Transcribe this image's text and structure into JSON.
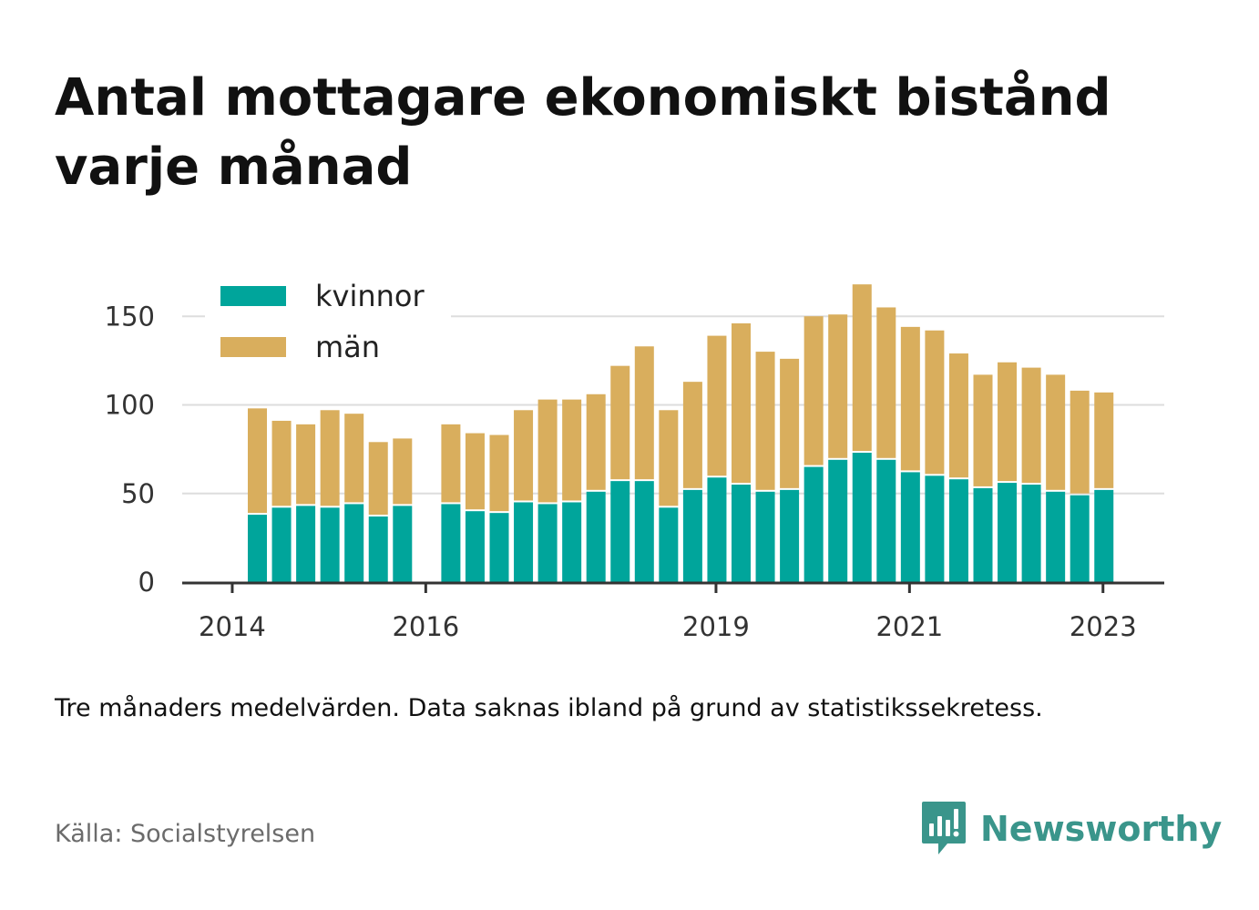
{
  "header": {
    "title": "Antal mottagare ekonomiskt bistånd varje månad"
  },
  "caption": "Tre månaders medelvärden. Data saknas ibland på grund av statistikssekretess.",
  "source": "Källa: Socialstyrelsen",
  "brand": {
    "name": "Newsworthy",
    "icon": "newsworthy-logo-icon",
    "color": "#3a958b"
  },
  "colors": {
    "kvinnor": "#00a59b",
    "man": "#d9ae5d",
    "grid": "#dddddd",
    "axis": "#333333"
  },
  "chart_data": {
    "type": "bar",
    "stacked": true,
    "title": "Antal mottagare ekonomiskt bistånd varje månad",
    "xlabel": "",
    "ylabel": "",
    "ylim": [
      0,
      170
    ],
    "yticks": [
      0,
      50,
      100,
      150
    ],
    "xticks": [
      "2014",
      "2016",
      "2019",
      "2021",
      "2023"
    ],
    "grid": true,
    "legend_position": "top-left",
    "categories": [
      "2014-04",
      "2014-07",
      "2014-10",
      "2015-01",
      "2015-04",
      "2015-07",
      "2015-10",
      "2016-01",
      "2016-04",
      "2016-07",
      "2016-10",
      "2017-01",
      "2017-04",
      "2017-07",
      "2017-10",
      "2018-01",
      "2018-04",
      "2018-07",
      "2018-10",
      "2019-01",
      "2019-04",
      "2019-07",
      "2019-10",
      "2020-01",
      "2020-04",
      "2020-07",
      "2020-10",
      "2021-01",
      "2021-04",
      "2021-07",
      "2021-10",
      "2022-01",
      "2022-04",
      "2022-07",
      "2022-10",
      "2023-01",
      "2023-04"
    ],
    "series": [
      {
        "name": "kvinnor",
        "color": "#00a59b",
        "values": [
          38,
          42,
          43,
          42,
          44,
          37,
          43,
          null,
          44,
          40,
          39,
          45,
          44,
          45,
          51,
          57,
          57,
          42,
          52,
          59,
          55,
          51,
          52,
          65,
          69,
          73,
          69,
          62,
          60,
          58,
          53,
          56,
          55,
          51,
          49,
          52,
          null
        ]
      },
      {
        "name": "män",
        "color": "#d9ae5d",
        "values": [
          59,
          48,
          45,
          54,
          50,
          41,
          37,
          null,
          44,
          43,
          43,
          51,
          58,
          57,
          54,
          64,
          75,
          54,
          60,
          79,
          90,
          78,
          73,
          84,
          81,
          94,
          85,
          81,
          81,
          70,
          63,
          67,
          65,
          65,
          58,
          54,
          null
        ]
      }
    ]
  }
}
